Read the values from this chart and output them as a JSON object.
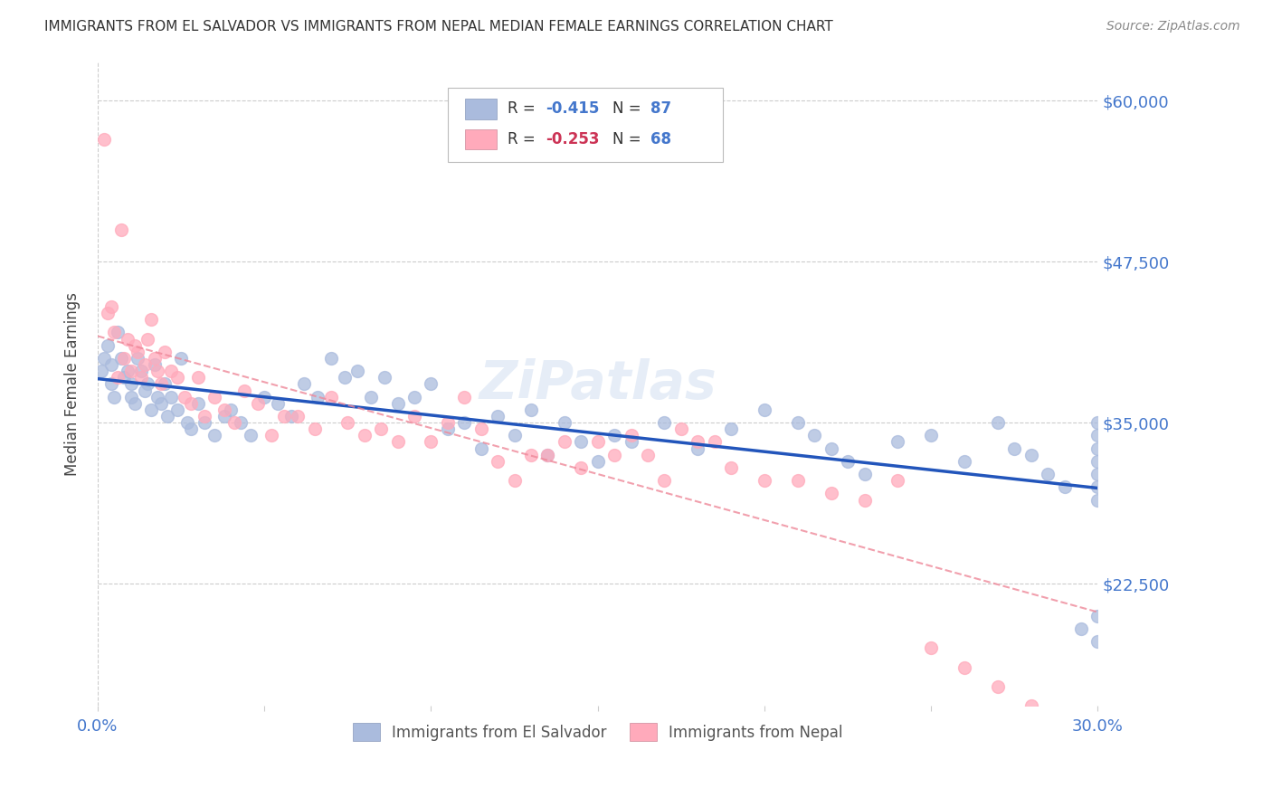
{
  "title": "IMMIGRANTS FROM EL SALVADOR VS IMMIGRANTS FROM NEPAL MEDIAN FEMALE EARNINGS CORRELATION CHART",
  "source": "Source: ZipAtlas.com",
  "ylabel": "Median Female Earnings",
  "y_ticks": [
    22500,
    35000,
    47500,
    60000
  ],
  "y_tick_labels": [
    "$22,500",
    "$35,000",
    "$47,500",
    "$60,000"
  ],
  "x_min": 0.0,
  "x_max": 30.0,
  "y_min": 13000,
  "y_max": 63000,
  "color_salvador": "#aabbdd",
  "color_nepal": "#ffaabb",
  "color_trendline_salvador": "#2255bb",
  "color_trendline_nepal": "#ee8899",
  "color_axis_labels": "#4477cc",
  "watermark": "ZiPatlas",
  "el_salvador_x": [
    0.1,
    0.2,
    0.3,
    0.4,
    0.4,
    0.5,
    0.6,
    0.7,
    0.8,
    0.9,
    1.0,
    1.0,
    1.1,
    1.2,
    1.3,
    1.4,
    1.5,
    1.6,
    1.7,
    1.8,
    1.9,
    2.0,
    2.1,
    2.2,
    2.4,
    2.5,
    2.7,
    2.8,
    3.0,
    3.2,
    3.5,
    3.8,
    4.0,
    4.3,
    4.6,
    5.0,
    5.4,
    5.8,
    6.2,
    6.6,
    7.0,
    7.4,
    7.8,
    8.2,
    8.6,
    9.0,
    9.5,
    10.0,
    10.5,
    11.0,
    11.5,
    12.0,
    12.5,
    13.0,
    13.5,
    14.0,
    14.5,
    15.0,
    15.5,
    16.0,
    17.0,
    18.0,
    19.0,
    20.0,
    21.0,
    21.5,
    22.0,
    22.5,
    23.0,
    24.0,
    25.0,
    26.0,
    27.0,
    27.5,
    28.0,
    28.5,
    29.0,
    29.5,
    30.0,
    30.0,
    30.0,
    30.0,
    30.0,
    30.0,
    30.0,
    30.0,
    30.0
  ],
  "el_salvador_y": [
    39000,
    40000,
    41000,
    38000,
    39500,
    37000,
    42000,
    40000,
    38500,
    39000,
    37000,
    38000,
    36500,
    40000,
    39000,
    37500,
    38000,
    36000,
    39500,
    37000,
    36500,
    38000,
    35500,
    37000,
    36000,
    40000,
    35000,
    34500,
    36500,
    35000,
    34000,
    35500,
    36000,
    35000,
    34000,
    37000,
    36500,
    35500,
    38000,
    37000,
    40000,
    38500,
    39000,
    37000,
    38500,
    36500,
    37000,
    38000,
    34500,
    35000,
    33000,
    35500,
    34000,
    36000,
    32500,
    35000,
    33500,
    32000,
    34000,
    33500,
    35000,
    33000,
    34500,
    36000,
    35000,
    34000,
    33000,
    32000,
    31000,
    33500,
    34000,
    32000,
    35000,
    33000,
    32500,
    31000,
    30000,
    19000,
    20000,
    18000,
    30000,
    35000,
    34000,
    33000,
    32000,
    31000,
    29000
  ],
  "nepal_x": [
    0.2,
    0.3,
    0.4,
    0.5,
    0.6,
    0.7,
    0.8,
    0.9,
    1.0,
    1.1,
    1.2,
    1.3,
    1.4,
    1.5,
    1.6,
    1.7,
    1.8,
    1.9,
    2.0,
    2.2,
    2.4,
    2.6,
    2.8,
    3.0,
    3.2,
    3.5,
    3.8,
    4.1,
    4.4,
    4.8,
    5.2,
    5.6,
    6.0,
    6.5,
    7.0,
    7.5,
    8.0,
    8.5,
    9.0,
    9.5,
    10.0,
    10.5,
    11.0,
    11.5,
    12.0,
    12.5,
    13.0,
    13.5,
    14.0,
    14.5,
    15.0,
    15.5,
    16.0,
    16.5,
    17.0,
    17.5,
    18.0,
    18.5,
    19.0,
    20.0,
    21.0,
    22.0,
    23.0,
    24.0,
    25.0,
    26.0,
    27.0,
    28.0
  ],
  "nepal_y": [
    57000,
    43500,
    44000,
    42000,
    38500,
    50000,
    40000,
    41500,
    39000,
    41000,
    40500,
    38500,
    39500,
    41500,
    43000,
    40000,
    39000,
    38000,
    40500,
    39000,
    38500,
    37000,
    36500,
    38500,
    35500,
    37000,
    36000,
    35000,
    37500,
    36500,
    34000,
    35500,
    35500,
    34500,
    37000,
    35000,
    34000,
    34500,
    33500,
    35500,
    33500,
    35000,
    37000,
    34500,
    32000,
    30500,
    32500,
    32500,
    33500,
    31500,
    33500,
    32500,
    34000,
    32500,
    30500,
    34500,
    33500,
    33500,
    31500,
    30500,
    30500,
    29500,
    29000,
    30500,
    17500,
    16000,
    14500,
    13000
  ]
}
